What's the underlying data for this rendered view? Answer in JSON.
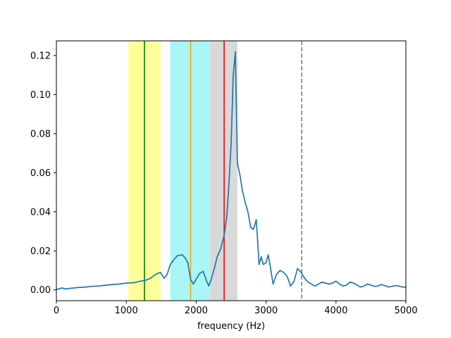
{
  "chart_data": {
    "type": "line",
    "title": "",
    "xlabel": "frequency (Hz)",
    "ylabel": "",
    "xlim": [
      0,
      5000
    ],
    "ylim": [
      -0.0055,
      0.1275
    ],
    "grid": false,
    "legend": "none",
    "x_ticks": [
      0,
      1000,
      2000,
      3000,
      4000,
      5000
    ],
    "x_tick_labels": [
      "0",
      "1000",
      "2000",
      "3000",
      "4000",
      "5000"
    ],
    "y_ticks": [
      0.0,
      0.02,
      0.04,
      0.06,
      0.08,
      0.1,
      0.12
    ],
    "y_tick_labels": [
      "0.00",
      "0.02",
      "0.04",
      "0.06",
      "0.08",
      "0.10",
      "0.12"
    ],
    "bands": [
      {
        "from": 1030,
        "to": 1490,
        "color": "#ffff99"
      },
      {
        "from": 1630,
        "to": 2200,
        "color": "#aaf6f6"
      },
      {
        "from": 2200,
        "to": 2590,
        "color": "#d9d9d9"
      }
    ],
    "vlines": [
      {
        "x": 1260,
        "color": "#008000",
        "style": "solid"
      },
      {
        "x": 1920,
        "color": "#ffa500",
        "style": "solid"
      },
      {
        "x": 2400,
        "color": "#ff0000",
        "style": "solid"
      },
      {
        "x": 3510,
        "color": "#808080",
        "style": "dashed"
      }
    ],
    "series": [
      {
        "color": "#1f77b4",
        "x": [
          0,
          80,
          130,
          200,
          300,
          400,
          500,
          600,
          700,
          800,
          900,
          1000,
          1100,
          1150,
          1200,
          1280,
          1350,
          1400,
          1450,
          1490,
          1540,
          1580,
          1630,
          1680,
          1730,
          1800,
          1850,
          1880,
          1920,
          1960,
          2000,
          2050,
          2100,
          2150,
          2180,
          2220,
          2260,
          2300,
          2350,
          2400,
          2440,
          2470,
          2500,
          2530,
          2560,
          2590,
          2630,
          2660,
          2700,
          2740,
          2780,
          2820,
          2860,
          2900,
          2930,
          2960,
          3000,
          3030,
          3060,
          3100,
          3150,
          3200,
          3250,
          3300,
          3350,
          3400,
          3450,
          3500,
          3550,
          3600,
          3650,
          3700,
          3750,
          3800,
          3850,
          3900,
          3950,
          4000,
          4050,
          4100,
          4150,
          4200,
          4250,
          4300,
          4350,
          4400,
          4450,
          4500,
          4550,
          4600,
          4650,
          4700,
          4750,
          4800,
          4850,
          4900,
          4950,
          5000
        ],
        "y": [
          0.0002,
          0.001,
          0.0005,
          0.0008,
          0.0012,
          0.0014,
          0.0018,
          0.002,
          0.0024,
          0.0028,
          0.003,
          0.0035,
          0.0037,
          0.004,
          0.0045,
          0.005,
          0.006,
          0.0075,
          0.0085,
          0.009,
          0.006,
          0.0075,
          0.013,
          0.0155,
          0.0175,
          0.018,
          0.016,
          0.014,
          0.0055,
          0.003,
          0.0055,
          0.0085,
          0.0095,
          0.0045,
          0.002,
          0.006,
          0.011,
          0.017,
          0.021,
          0.028,
          0.038,
          0.055,
          0.075,
          0.11,
          0.122,
          0.065,
          0.058,
          0.051,
          0.045,
          0.04,
          0.032,
          0.031,
          0.036,
          0.013,
          0.017,
          0.013,
          0.014,
          0.018,
          0.012,
          0.003,
          0.008,
          0.01,
          0.009,
          0.007,
          0.002,
          0.0045,
          0.011,
          0.009,
          0.006,
          0.004,
          0.003,
          0.002,
          0.003,
          0.004,
          0.0035,
          0.003,
          0.0035,
          0.0045,
          0.003,
          0.002,
          0.0025,
          0.004,
          0.0035,
          0.0025,
          0.0015,
          0.002,
          0.003,
          0.0025,
          0.0018,
          0.002,
          0.0028,
          0.0022,
          0.0015,
          0.0018,
          0.0022,
          0.002,
          0.0015,
          0.0014
        ]
      }
    ]
  }
}
